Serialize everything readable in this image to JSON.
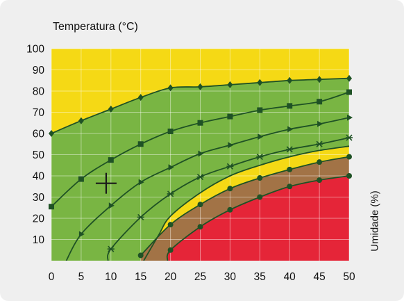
{
  "chart_data": {
    "type": "area",
    "ylabel": "Temperatura (°C)",
    "xlabel": "Umidade (%)",
    "xlim": [
      0,
      50
    ],
    "ylim": [
      0,
      100
    ],
    "x_ticks": [
      "0",
      "5",
      "10",
      "15",
      "20",
      "25",
      "30",
      "35",
      "40",
      "45",
      "50"
    ],
    "y_ticks": [
      "10",
      "20",
      "30",
      "40",
      "50",
      "60",
      "70",
      "80",
      "90",
      "100"
    ],
    "grid": true,
    "zone_colors": {
      "background": "#f5d915",
      "green": "#79b543",
      "brown": "#a27346",
      "red": "#e52538",
      "line": "#1f5225"
    },
    "zones": [
      {
        "color": "green",
        "upper_curve": "curve-1",
        "lower_curve": "curve-5"
      },
      {
        "color": "brown",
        "upper_curve": "curve-6",
        "lower_curve": "curve-7"
      },
      {
        "color": "red",
        "upper_curve": "curve-7",
        "lower_curve": null
      }
    ],
    "series": [
      {
        "id": "curve-1",
        "marker": "diamond",
        "x": [
          0,
          5,
          10,
          15,
          20,
          25,
          30,
          35,
          40,
          45,
          50
        ],
        "y": [
          60,
          66,
          71.5,
          77,
          81.5,
          82,
          83,
          84,
          85,
          85.5,
          86
        ]
      },
      {
        "id": "curve-2",
        "marker": "square",
        "x": [
          0,
          5,
          10,
          15,
          20,
          25,
          30,
          35,
          40,
          45,
          50
        ],
        "y": [
          25.5,
          38.5,
          47.5,
          55,
          61,
          65,
          68,
          71,
          73,
          75,
          79.5
        ]
      },
      {
        "id": "curve-3",
        "marker": "triangle",
        "x": [
          2.5,
          5,
          10,
          15,
          20,
          25,
          30,
          35,
          40,
          45,
          50
        ],
        "y": [
          0,
          12.5,
          26,
          37,
          44,
          50.5,
          54.5,
          58.5,
          62,
          64.5,
          67.5
        ]
      },
      {
        "id": "curve-4",
        "marker": "star",
        "x": [
          9.5,
          10,
          15,
          20,
          25,
          30,
          35,
          40,
          45,
          50
        ],
        "y": [
          0,
          5.5,
          20.5,
          31.5,
          39.5,
          44.5,
          49,
          52.5,
          55,
          58
        ]
      },
      {
        "id": "curve-5",
        "marker": "none",
        "x": [
          15.5,
          18,
          20,
          25,
          30,
          35,
          40,
          45,
          50
        ],
        "y": [
          0,
          12,
          21,
          32,
          40,
          45,
          49,
          52,
          54
        ]
      },
      {
        "id": "curve-6",
        "marker": "circle",
        "x": [
          15,
          20,
          25,
          30,
          35,
          40,
          45,
          50
        ],
        "y": [
          2.5,
          17,
          26.5,
          34,
          39,
          43,
          46.5,
          49
        ]
      },
      {
        "id": "curve-7",
        "marker": "circle",
        "x": [
          19.5,
          20,
          25,
          30,
          35,
          40,
          45,
          50
        ],
        "y": [
          0,
          5,
          16,
          24,
          30,
          35,
          38,
          40
        ]
      }
    ],
    "crosshair": {
      "x": 9.2,
      "y": 36.5,
      "icon": "crosshair-icon"
    }
  }
}
